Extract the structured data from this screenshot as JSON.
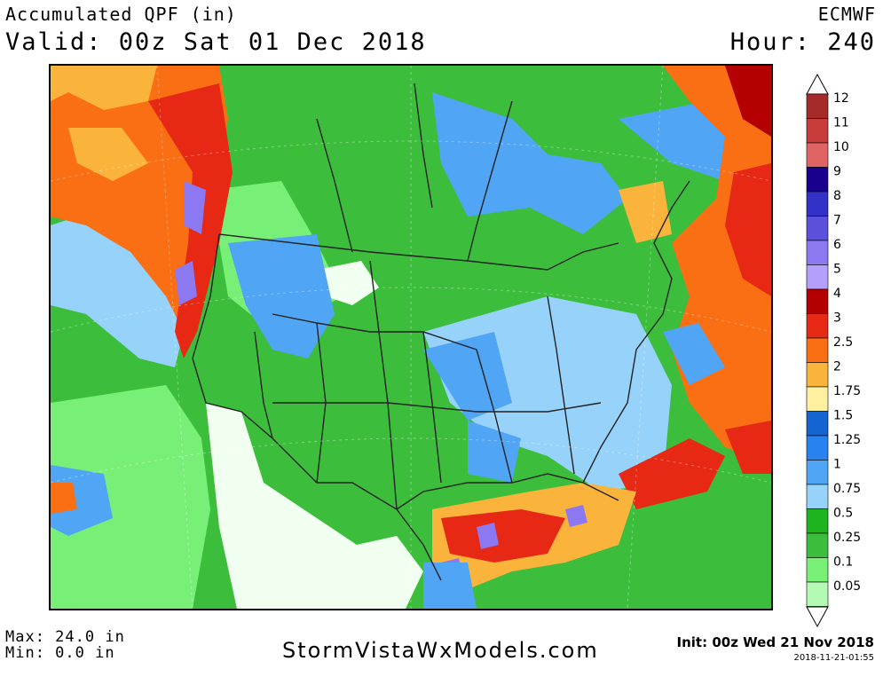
{
  "header": {
    "title": "Accumulated QPF (in)",
    "valid": "Valid: 00z Sat 01 Dec 2018",
    "model": "ECMWF",
    "hour": "Hour: 240"
  },
  "footer": {
    "max": "Max: 24.0 in",
    "min": "Min: 0.0 in",
    "site": "StormVistaWxModels.com",
    "init": "Init: 00z Wed 21 Nov 2018",
    "timestamp": "2018-11-21-01:55"
  },
  "legend": {
    "levels": [
      {
        "label": "12",
        "color": "#a52a2a"
      },
      {
        "label": "11",
        "color": "#c83c3c"
      },
      {
        "label": "10",
        "color": "#e06464"
      },
      {
        "label": "9",
        "color": "#1a008c"
      },
      {
        "label": "8",
        "color": "#3232c8"
      },
      {
        "label": "7",
        "color": "#5a50dc"
      },
      {
        "label": "6",
        "color": "#8c78f0"
      },
      {
        "label": "5",
        "color": "#b4a0fa"
      },
      {
        "label": "4",
        "color": "#b40000"
      },
      {
        "label": "3",
        "color": "#e62814"
      },
      {
        "label": "2.5",
        "color": "#fa6e14"
      },
      {
        "label": "2",
        "color": "#fab43c"
      },
      {
        "label": "1.75",
        "color": "#fff0a0"
      },
      {
        "label": "1.5",
        "color": "#1464d2"
      },
      {
        "label": "1.25",
        "color": "#2882f0"
      },
      {
        "label": "1",
        "color": "#50a5f5"
      },
      {
        "label": "0.75",
        "color": "#96d2fa"
      },
      {
        "label": "0.5",
        "color": "#1eb41e"
      },
      {
        "label": "0.25",
        "color": "#3cbe3c"
      },
      {
        "label": "0.1",
        "color": "#78f078"
      },
      {
        "label": "0.05",
        "color": "#b4fab4"
      }
    ]
  }
}
